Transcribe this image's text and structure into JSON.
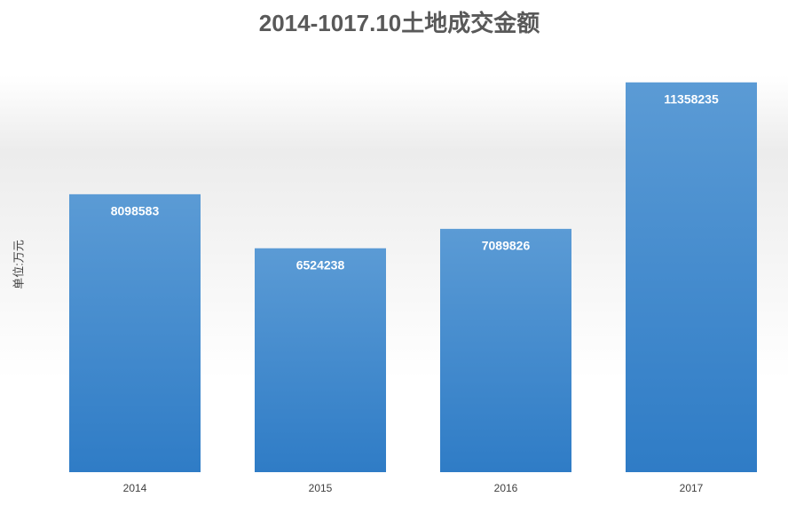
{
  "chart_data": {
    "type": "bar",
    "title": "2014-1017.10土地成交金额",
    "y_label": "单位:万元",
    "categories": [
      "2014",
      "2015",
      "2016",
      "2017"
    ],
    "values": [
      8098583,
      6524238,
      7089826,
      11358235
    ],
    "color": "#5b9bd5",
    "ylim": [
      0,
      12000000
    ],
    "data_labels": true
  }
}
